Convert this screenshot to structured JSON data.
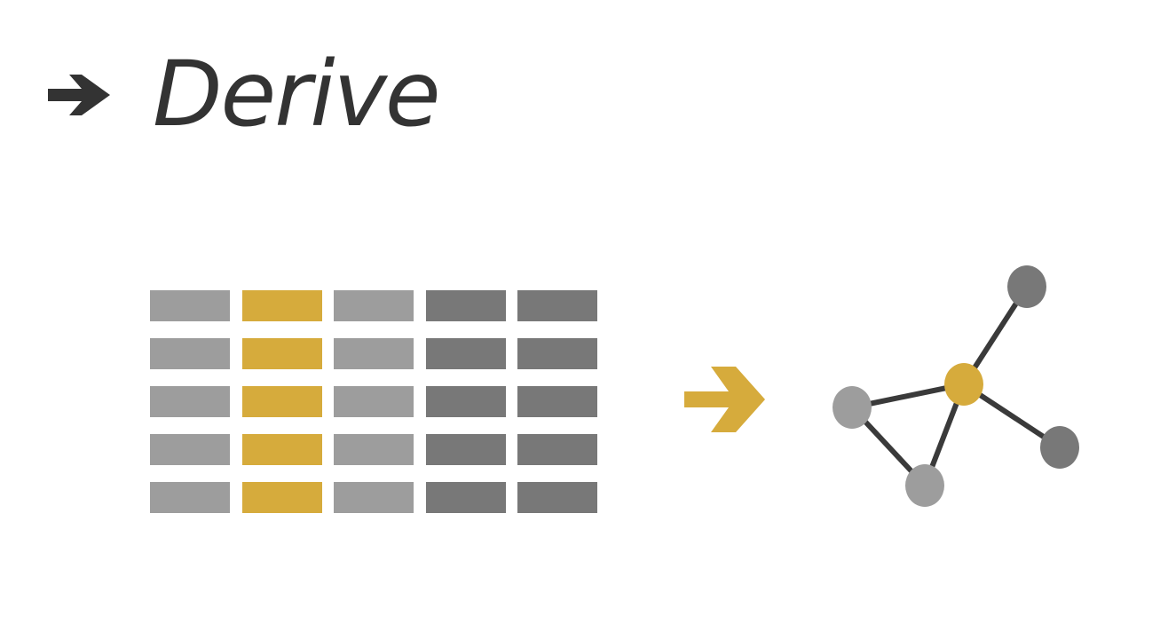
{
  "title": {
    "text": "Derive",
    "icon": "right-arrow-icon"
  },
  "colors": {
    "title_text": "#333333",
    "accent_gold": "#d6ab3c",
    "gray_light": "#9d9d9d",
    "gray_dark": "#787878",
    "edge": "#3a3a3a"
  },
  "table": {
    "rows": 5,
    "columns": [
      {
        "tone": "light",
        "highlighted": false
      },
      {
        "tone": "gold",
        "highlighted": true
      },
      {
        "tone": "light",
        "highlighted": false
      },
      {
        "tone": "dark",
        "highlighted": false
      },
      {
        "tone": "dark",
        "highlighted": false
      }
    ]
  },
  "transform_arrow": {
    "icon": "right-arrow-icon",
    "color": "#d6ab3c"
  },
  "graph": {
    "nodes": [
      {
        "id": "hub",
        "tone": "gold"
      },
      {
        "id": "top-right",
        "tone": "dark"
      },
      {
        "id": "left",
        "tone": "light"
      },
      {
        "id": "bottom",
        "tone": "light"
      },
      {
        "id": "right",
        "tone": "dark"
      }
    ],
    "edges": [
      [
        "hub",
        "top-right"
      ],
      [
        "hub",
        "left"
      ],
      [
        "hub",
        "bottom"
      ],
      [
        "hub",
        "right"
      ],
      [
        "left",
        "bottom"
      ]
    ]
  }
}
